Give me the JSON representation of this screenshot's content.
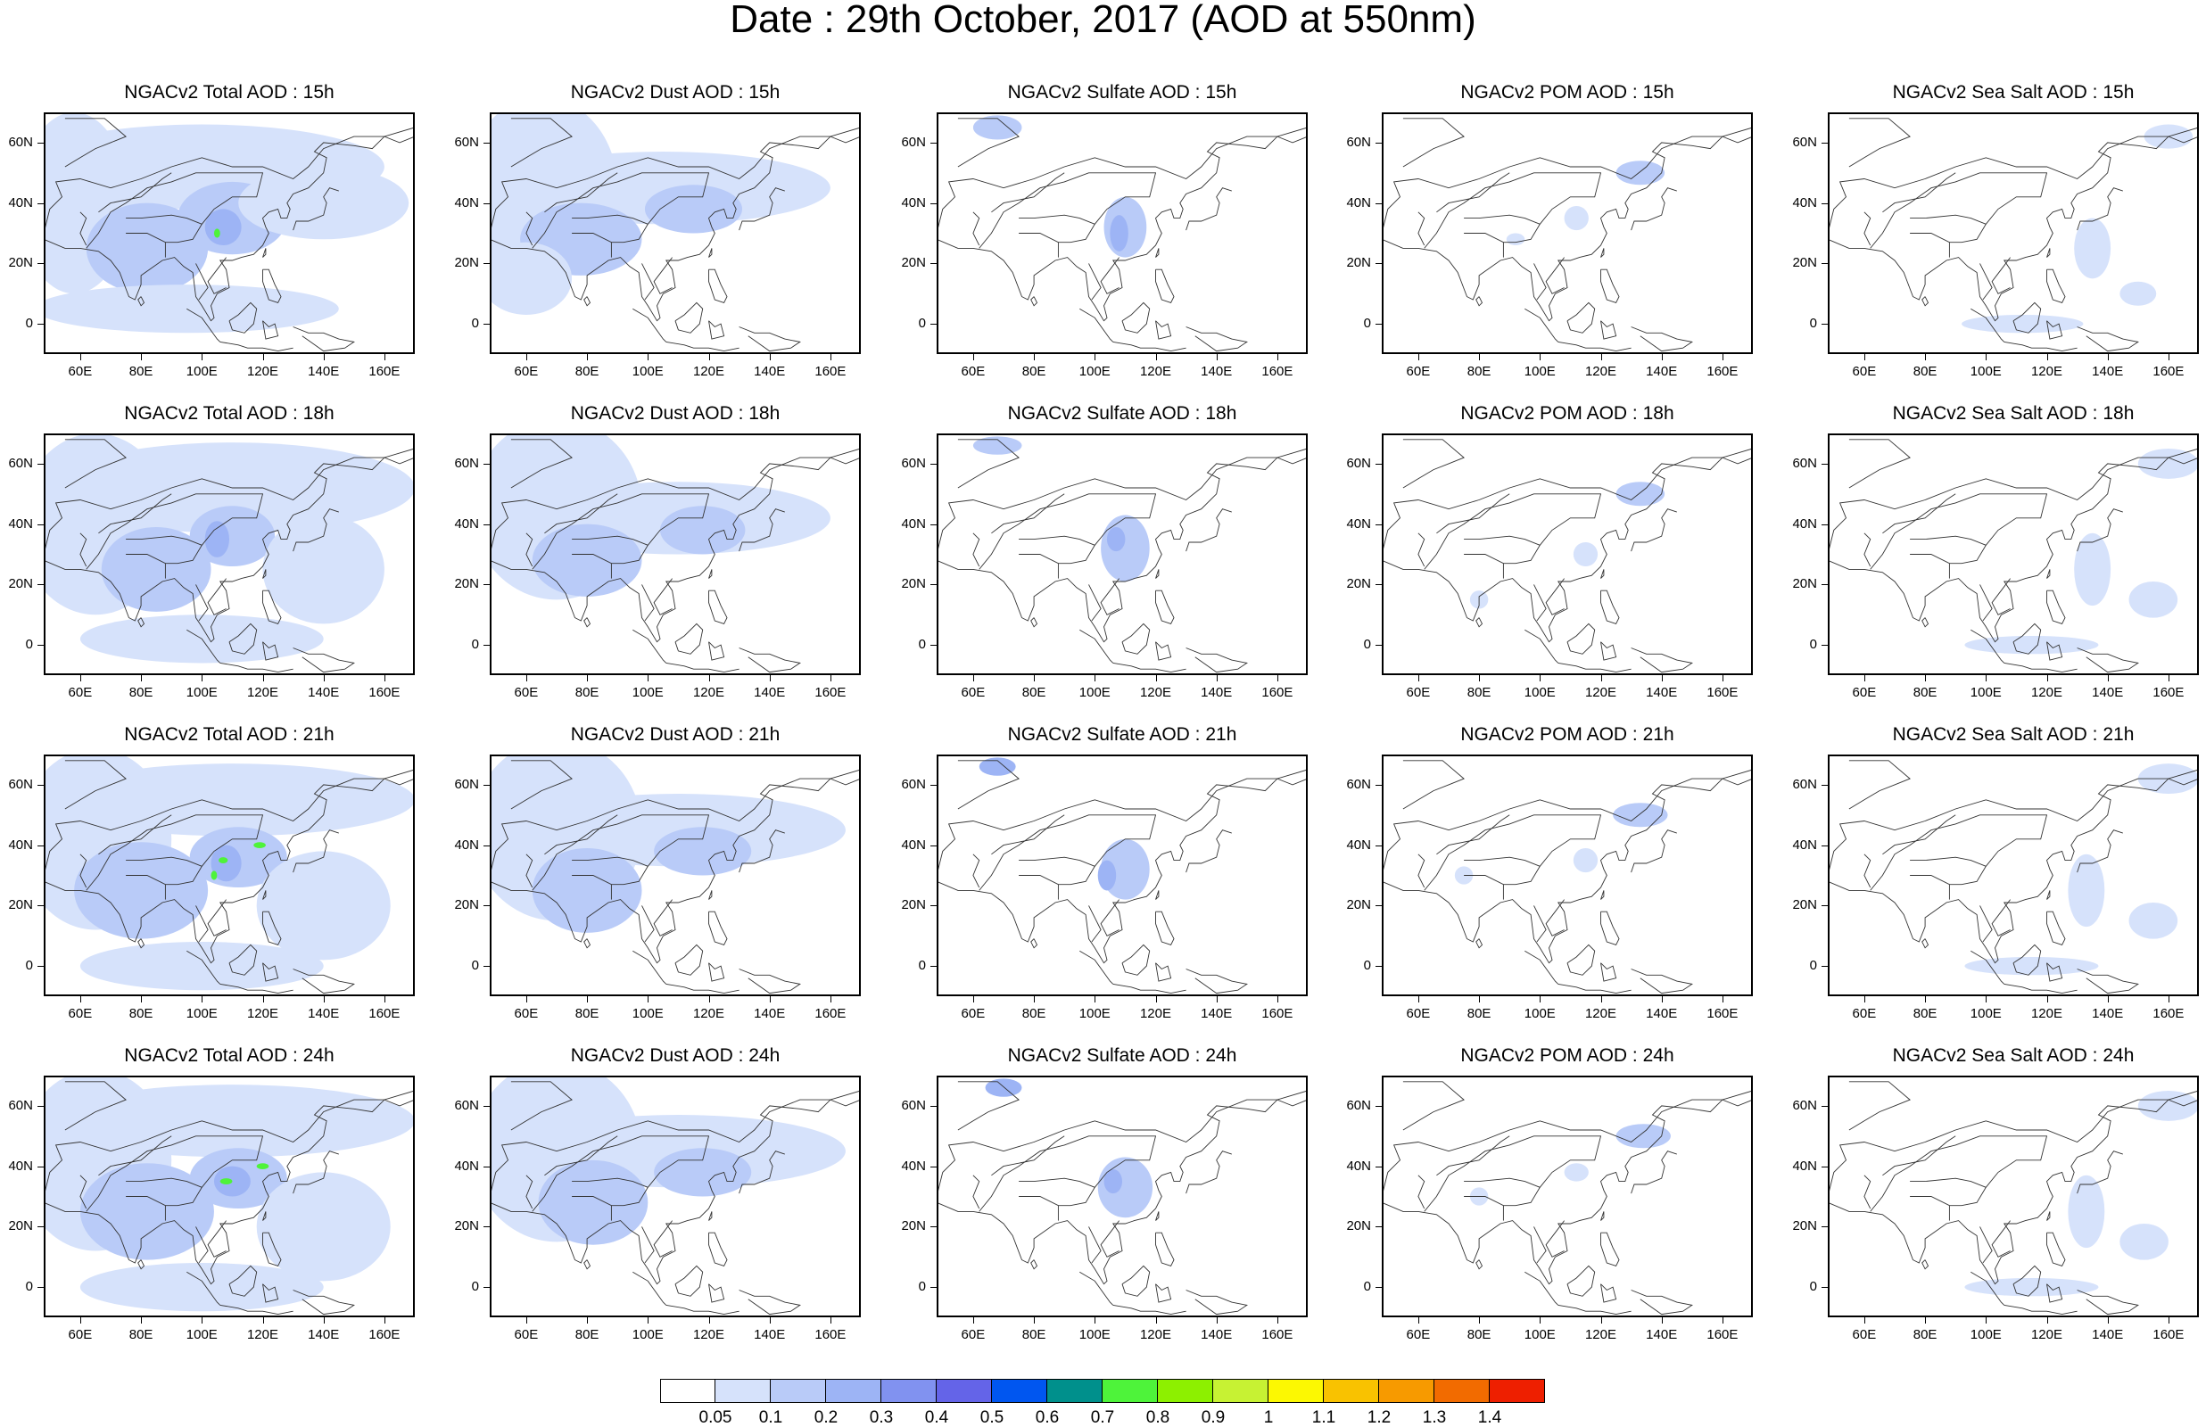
{
  "title": "Date : 29th October, 2017 (AOD at 550nm)",
  "panels": [
    [
      "NGACv2 Total AOD : 15h",
      "NGACv2 Dust AOD : 15h",
      "NGACv2 Sulfate AOD : 15h",
      "NGACv2 POM AOD : 15h",
      "NGACv2 Sea Salt AOD : 15h"
    ],
    [
      "NGACv2 Total AOD : 18h",
      "NGACv2 Dust AOD : 18h",
      "NGACv2 Sulfate AOD : 18h",
      "NGACv2 POM AOD : 18h",
      "NGACv2 Sea Salt AOD : 18h"
    ],
    [
      "NGACv2 Total AOD : 21h",
      "NGACv2 Dust AOD : 21h",
      "NGACv2 Sulfate AOD : 21h",
      "NGACv2 POM AOD : 21h",
      "NGACv2 Sea Salt AOD : 21h"
    ],
    [
      "NGACv2 Total AOD : 24h",
      "NGACv2 Dust AOD : 24h",
      "NGACv2 Sulfate AOD : 24h",
      "NGACv2 POM AOD : 24h",
      "NGACv2 Sea Salt  AOD : 24h"
    ]
  ],
  "lat_ticks": [
    "60N",
    "40N",
    "20N",
    "0"
  ],
  "lon_ticks": [
    "60E",
    "80E",
    "100E",
    "120E",
    "140E",
    "160E"
  ],
  "map_extent": {
    "lon": [
      48,
      170
    ],
    "lat": [
      -10,
      70
    ]
  },
  "colorbar": {
    "labels": [
      "0.05",
      "0.1",
      "0.2",
      "0.3",
      "0.4",
      "0.5",
      "0.6",
      "0.7",
      "0.8",
      "0.9",
      "1",
      "1.1",
      "1.2",
      "1.3",
      "1.4"
    ],
    "colors": [
      "#ffffff",
      "#d6e2fb",
      "#b9cbf8",
      "#9db4f5",
      "#8192f0",
      "#6464e8",
      "#0056f0",
      "#00908c",
      "#4ef33a",
      "#8df000",
      "#c7f233",
      "#fcf802",
      "#f9c200",
      "#f79a00",
      "#f26b00",
      "#ee1f00"
    ]
  },
  "fields": {
    "total_15": [
      {
        "c": 1,
        "lon": 58,
        "lat": 40,
        "rx": 18,
        "ry": 30
      },
      {
        "c": 1,
        "lon": 100,
        "lat": 52,
        "rx": 60,
        "ry": 14
      },
      {
        "c": 2,
        "lon": 82,
        "lat": 25,
        "rx": 20,
        "ry": 15
      },
      {
        "c": 2,
        "lon": 110,
        "lat": 35,
        "rx": 18,
        "ry": 12
      },
      {
        "c": 1,
        "lon": 140,
        "lat": 40,
        "rx": 28,
        "ry": 12
      },
      {
        "c": 1,
        "lon": 95,
        "lat": 5,
        "rx": 50,
        "ry": 8
      },
      {
        "c": 3,
        "lon": 107,
        "lat": 32,
        "rx": 6,
        "ry": 6
      },
      {
        "c": 8,
        "lon": 105,
        "lat": 30,
        "rx": 1,
        "ry": 1.5
      }
    ],
    "dust_15": [
      {
        "c": 1,
        "lon": 65,
        "lat": 45,
        "rx": 25,
        "ry": 30
      },
      {
        "c": 1,
        "lon": 105,
        "lat": 45,
        "rx": 55,
        "ry": 12
      },
      {
        "c": 2,
        "lon": 78,
        "lat": 28,
        "rx": 20,
        "ry": 12
      },
      {
        "c": 2,
        "lon": 115,
        "lat": 38,
        "rx": 16,
        "ry": 8
      },
      {
        "c": 1,
        "lon": 60,
        "lat": 15,
        "rx": 15,
        "ry": 12
      }
    ],
    "sulfate_15": [
      {
        "c": 2,
        "lon": 68,
        "lat": 65,
        "rx": 8,
        "ry": 4
      },
      {
        "c": 2,
        "lon": 110,
        "lat": 32,
        "rx": 7,
        "ry": 10
      },
      {
        "c": 3,
        "lon": 108,
        "lat": 30,
        "rx": 3,
        "ry": 6
      }
    ],
    "pom_15": [
      {
        "c": 2,
        "lon": 133,
        "lat": 50,
        "rx": 8,
        "ry": 4
      },
      {
        "c": 1,
        "lon": 112,
        "lat": 35,
        "rx": 4,
        "ry": 4
      },
      {
        "c": 1,
        "lon": 92,
        "lat": 28,
        "rx": 3,
        "ry": 2
      }
    ],
    "seasalt_15": [
      {
        "c": 1,
        "lon": 135,
        "lat": 25,
        "rx": 6,
        "ry": 10
      },
      {
        "c": 1,
        "lon": 112,
        "lat": 0,
        "rx": 20,
        "ry": 3
      },
      {
        "c": 1,
        "lon": 160,
        "lat": 62,
        "rx": 8,
        "ry": 4
      },
      {
        "c": 1,
        "lon": 150,
        "lat": 10,
        "rx": 6,
        "ry": 4
      }
    ],
    "total_18": [
      {
        "c": 1,
        "lon": 65,
        "lat": 40,
        "rx": 25,
        "ry": 30
      },
      {
        "c": 1,
        "lon": 110,
        "lat": 52,
        "rx": 60,
        "ry": 15
      },
      {
        "c": 2,
        "lon": 85,
        "lat": 25,
        "rx": 18,
        "ry": 14
      },
      {
        "c": 2,
        "lon": 110,
        "lat": 36,
        "rx": 14,
        "ry": 10
      },
      {
        "c": 1,
        "lon": 140,
        "lat": 25,
        "rx": 20,
        "ry": 18
      },
      {
        "c": 1,
        "lon": 100,
        "lat": 2,
        "rx": 40,
        "ry": 8
      },
      {
        "c": 3,
        "lon": 105,
        "lat": 35,
        "rx": 4,
        "ry": 6
      }
    ],
    "dust_18": [
      {
        "c": 1,
        "lon": 70,
        "lat": 45,
        "rx": 28,
        "ry": 30
      },
      {
        "c": 1,
        "lon": 110,
        "lat": 42,
        "rx": 50,
        "ry": 12
      },
      {
        "c": 2,
        "lon": 80,
        "lat": 28,
        "rx": 18,
        "ry": 12
      },
      {
        "c": 2,
        "lon": 118,
        "lat": 38,
        "rx": 14,
        "ry": 8
      }
    ],
    "sulfate_18": [
      {
        "c": 2,
        "lon": 68,
        "lat": 66,
        "rx": 8,
        "ry": 3
      },
      {
        "c": 2,
        "lon": 110,
        "lat": 32,
        "rx": 8,
        "ry": 11
      },
      {
        "c": 3,
        "lon": 107,
        "lat": 35,
        "rx": 3,
        "ry": 4
      }
    ],
    "pom_18": [
      {
        "c": 2,
        "lon": 133,
        "lat": 50,
        "rx": 8,
        "ry": 4
      },
      {
        "c": 1,
        "lon": 115,
        "lat": 30,
        "rx": 4,
        "ry": 4
      },
      {
        "c": 1,
        "lon": 80,
        "lat": 15,
        "rx": 3,
        "ry": 3
      }
    ],
    "seasalt_18": [
      {
        "c": 1,
        "lon": 135,
        "lat": 25,
        "rx": 6,
        "ry": 12
      },
      {
        "c": 1,
        "lon": 115,
        "lat": 0,
        "rx": 22,
        "ry": 3
      },
      {
        "c": 1,
        "lon": 160,
        "lat": 60,
        "rx": 10,
        "ry": 5
      },
      {
        "c": 1,
        "lon": 155,
        "lat": 15,
        "rx": 8,
        "ry": 6
      }
    ],
    "total_21": [
      {
        "c": 1,
        "lon": 65,
        "lat": 42,
        "rx": 25,
        "ry": 30
      },
      {
        "c": 1,
        "lon": 110,
        "lat": 55,
        "rx": 60,
        "ry": 12
      },
      {
        "c": 2,
        "lon": 80,
        "lat": 25,
        "rx": 22,
        "ry": 16
      },
      {
        "c": 2,
        "lon": 112,
        "lat": 36,
        "rx": 16,
        "ry": 10
      },
      {
        "c": 1,
        "lon": 140,
        "lat": 20,
        "rx": 22,
        "ry": 18
      },
      {
        "c": 1,
        "lon": 100,
        "lat": 0,
        "rx": 40,
        "ry": 8
      },
      {
        "c": 3,
        "lon": 108,
        "lat": 34,
        "rx": 5,
        "ry": 6
      },
      {
        "c": 8,
        "lon": 107,
        "lat": 35,
        "rx": 1.5,
        "ry": 1
      },
      {
        "c": 8,
        "lon": 119,
        "lat": 40,
        "rx": 2,
        "ry": 1
      },
      {
        "c": 8,
        "lon": 104,
        "lat": 30,
        "rx": 1,
        "ry": 1.5
      }
    ],
    "dust_21": [
      {
        "c": 1,
        "lon": 70,
        "lat": 45,
        "rx": 28,
        "ry": 30
      },
      {
        "c": 1,
        "lon": 110,
        "lat": 45,
        "rx": 55,
        "ry": 12
      },
      {
        "c": 2,
        "lon": 80,
        "lat": 25,
        "rx": 18,
        "ry": 14
      },
      {
        "c": 2,
        "lon": 118,
        "lat": 38,
        "rx": 16,
        "ry": 8
      }
    ],
    "sulfate_21": [
      {
        "c": 3,
        "lon": 68,
        "lat": 66,
        "rx": 6,
        "ry": 3
      },
      {
        "c": 2,
        "lon": 110,
        "lat": 32,
        "rx": 8,
        "ry": 10
      },
      {
        "c": 3,
        "lon": 104,
        "lat": 30,
        "rx": 3,
        "ry": 5
      }
    ],
    "pom_21": [
      {
        "c": 2,
        "lon": 133,
        "lat": 50,
        "rx": 9,
        "ry": 4
      },
      {
        "c": 1,
        "lon": 115,
        "lat": 35,
        "rx": 4,
        "ry": 4
      },
      {
        "c": 1,
        "lon": 75,
        "lat": 30,
        "rx": 3,
        "ry": 3
      }
    ],
    "seasalt_21": [
      {
        "c": 1,
        "lon": 133,
        "lat": 25,
        "rx": 6,
        "ry": 12
      },
      {
        "c": 1,
        "lon": 115,
        "lat": 0,
        "rx": 22,
        "ry": 3
      },
      {
        "c": 1,
        "lon": 160,
        "lat": 62,
        "rx": 10,
        "ry": 5
      },
      {
        "c": 1,
        "lon": 155,
        "lat": 15,
        "rx": 8,
        "ry": 6
      }
    ],
    "total_24": [
      {
        "c": 1,
        "lon": 65,
        "lat": 42,
        "rx": 25,
        "ry": 30
      },
      {
        "c": 1,
        "lon": 110,
        "lat": 55,
        "rx": 60,
        "ry": 12
      },
      {
        "c": 2,
        "lon": 82,
        "lat": 25,
        "rx": 22,
        "ry": 16
      },
      {
        "c": 2,
        "lon": 112,
        "lat": 36,
        "rx": 16,
        "ry": 10
      },
      {
        "c": 1,
        "lon": 140,
        "lat": 20,
        "rx": 22,
        "ry": 18
      },
      {
        "c": 1,
        "lon": 100,
        "lat": 0,
        "rx": 40,
        "ry": 8
      },
      {
        "c": 3,
        "lon": 110,
        "lat": 35,
        "rx": 6,
        "ry": 5
      },
      {
        "c": 8,
        "lon": 108,
        "lat": 35,
        "rx": 2,
        "ry": 1
      },
      {
        "c": 8,
        "lon": 120,
        "lat": 40,
        "rx": 2,
        "ry": 1
      }
    ],
    "dust_24": [
      {
        "c": 1,
        "lon": 70,
        "lat": 45,
        "rx": 28,
        "ry": 30
      },
      {
        "c": 1,
        "lon": 110,
        "lat": 45,
        "rx": 55,
        "ry": 12
      },
      {
        "c": 2,
        "lon": 82,
        "lat": 28,
        "rx": 18,
        "ry": 14
      },
      {
        "c": 2,
        "lon": 118,
        "lat": 38,
        "rx": 16,
        "ry": 8
      }
    ],
    "sulfate_24": [
      {
        "c": 3,
        "lon": 70,
        "lat": 66,
        "rx": 6,
        "ry": 3
      },
      {
        "c": 2,
        "lon": 110,
        "lat": 33,
        "rx": 9,
        "ry": 10
      },
      {
        "c": 3,
        "lon": 106,
        "lat": 35,
        "rx": 3,
        "ry": 4
      }
    ],
    "pom_24": [
      {
        "c": 2,
        "lon": 134,
        "lat": 50,
        "rx": 9,
        "ry": 4
      },
      {
        "c": 1,
        "lon": 112,
        "lat": 38,
        "rx": 4,
        "ry": 3
      },
      {
        "c": 1,
        "lon": 80,
        "lat": 30,
        "rx": 3,
        "ry": 3
      }
    ],
    "seasalt_24": [
      {
        "c": 1,
        "lon": 133,
        "lat": 25,
        "rx": 6,
        "ry": 12
      },
      {
        "c": 1,
        "lon": 115,
        "lat": 0,
        "rx": 22,
        "ry": 3
      },
      {
        "c": 1,
        "lon": 160,
        "lat": 60,
        "rx": 10,
        "ry": 5
      },
      {
        "c": 1,
        "lon": 152,
        "lat": 15,
        "rx": 8,
        "ry": 6
      }
    ]
  }
}
